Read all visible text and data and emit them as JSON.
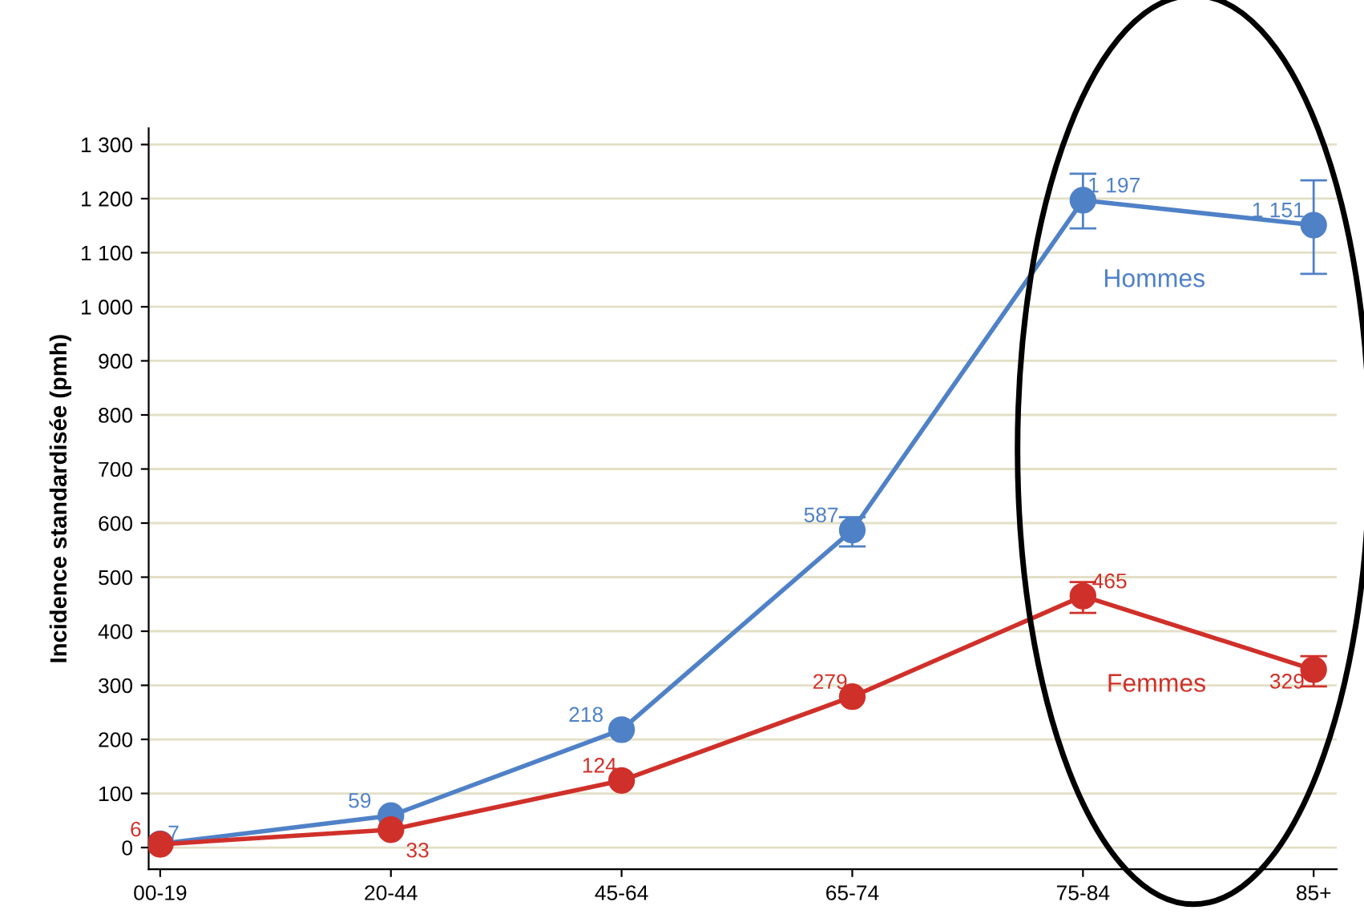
{
  "chart_data": {
    "type": "line",
    "ylabel": "Incidence standardisée (pmh)",
    "categories": [
      "00-19",
      "20-44",
      "45-64",
      "65-74",
      "75-84",
      "85+"
    ],
    "series": [
      {
        "name": "Hommes",
        "color": "#4f81c7",
        "values": [
          7,
          59,
          218,
          587,
          1197,
          1151
        ],
        "value_labels": [
          "7",
          "59",
          "218",
          "587",
          "1 197",
          "1 151"
        ],
        "errors": [
          null,
          null,
          null,
          [
            557,
            611
          ],
          [
            1145,
            1246
          ],
          [
            1061,
            1234
          ]
        ]
      },
      {
        "name": "Femmes",
        "color": "#d0302a",
        "values": [
          6,
          33,
          124,
          279,
          465,
          329
        ],
        "value_labels": [
          "6",
          "33",
          "124",
          "279",
          "465",
          "329"
        ],
        "errors": [
          null,
          null,
          null,
          null,
          [
            434,
            491
          ],
          [
            298,
            354
          ]
        ]
      }
    ],
    "ylim": [
      -40,
      1330
    ],
    "yticks": [
      0,
      100,
      200,
      300,
      400,
      500,
      600,
      700,
      800,
      900,
      {
        "value": 1000,
        "label": "1 000"
      },
      {
        "value": 1100,
        "label": "1 100"
      },
      {
        "value": 1200,
        "label": "1 200"
      },
      {
        "value": 1300,
        "label": "1 300"
      }
    ],
    "grid": "y",
    "legend": false,
    "marker": "circle",
    "line_style": "solid"
  }
}
